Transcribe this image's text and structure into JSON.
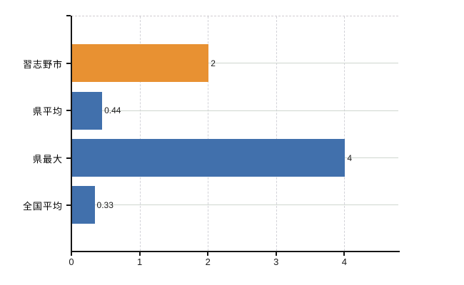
{
  "chart_data": {
    "type": "bar",
    "orientation": "horizontal",
    "title": "",
    "xlabel": "",
    "ylabel": "",
    "categories": [
      "習志野市",
      "県平均",
      "県最大",
      "全国平均"
    ],
    "values": [
      2,
      0.44,
      4,
      0.33
    ],
    "value_labels": [
      "2",
      "0.44",
      "4",
      "0.33"
    ],
    "bar_colors": [
      "#e89132",
      "#4170ac",
      "#4170ac",
      "#4170ac"
    ],
    "x_ticks": [
      "0",
      "1",
      "2",
      "3",
      "4"
    ],
    "x_tick_values": [
      0,
      1,
      2,
      3,
      4
    ],
    "xlim": [
      0,
      4.79
    ],
    "grid": true,
    "legend": null,
    "colors": {
      "background": "#ffffff",
      "axis": "#151515",
      "gridline_horizontal": "#cfd6cf",
      "gridline_vertical": "#d2d2d8",
      "top_border": "#d0ccd0",
      "text": "#000000",
      "bar_orange": "#e89132",
      "bar_blue": "#4170ac"
    }
  }
}
